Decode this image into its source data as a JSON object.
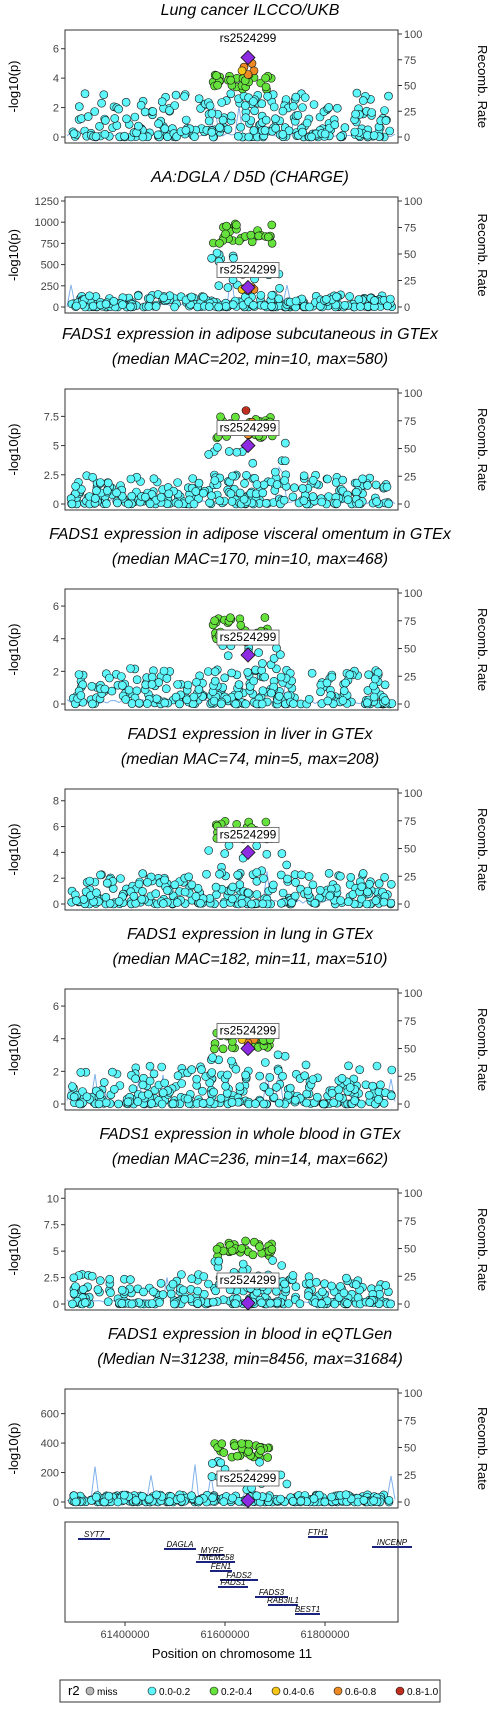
{
  "figure": {
    "lead_snp": "rs2524299",
    "y_label_left": "-log10(p)",
    "y_label_right": "Recomb. Rate",
    "x_label": "Position on chromosome 11",
    "x_ticks": [
      "61400000",
      "61600000",
      "61800000"
    ],
    "legend_title": "r2",
    "legend": [
      {
        "label": "miss",
        "color": "#b9b9b9"
      },
      {
        "label": "0.0-0.2",
        "color": "#5cf6fb"
      },
      {
        "label": "0.2-0.4",
        "color": "#66e23c"
      },
      {
        "label": "0.4-0.6",
        "color": "#f5c518"
      },
      {
        "label": "0.6-0.8",
        "color": "#ee8a23"
      },
      {
        "label": "0.8-1.0",
        "color": "#bf2f1f"
      }
    ],
    "lead_color": "#8c2be2",
    "recomb_color": "#4a90e2"
  },
  "chart_data": [
    {
      "type": "scatter",
      "title": [
        "Lung cancer ILCCO/UKB"
      ],
      "yticks": [
        0,
        2,
        4,
        6
      ],
      "ylim": [
        0,
        7
      ],
      "rticks": [
        0,
        25,
        50,
        75,
        100
      ],
      "peak": {
        "green": 4.3,
        "lead": 5.4,
        "orange": 5.0,
        "red": null
      },
      "background_max": 3
    },
    {
      "type": "scatter",
      "title": [
        "AA:DGLA / D5D (CHARGE)"
      ],
      "yticks": [
        0,
        250,
        500,
        750,
        1000,
        1250
      ],
      "ylim": [
        0,
        1250
      ],
      "rticks": [
        0,
        25,
        50,
        75,
        100
      ],
      "peak": {
        "green": 1000,
        "lead": 230,
        "orange": 230,
        "red": null
      },
      "background_max": 150
    },
    {
      "type": "scatter",
      "title": [
        "FADS1 expression in adipose subcutaneous in GTEx",
        "(median MAC=202, min=10, max=580)"
      ],
      "yticks": [
        0.0,
        2.5,
        5.0,
        7.5
      ],
      "ylim": [
        0,
        9.5
      ],
      "rticks": [
        0,
        25,
        50,
        75,
        100
      ],
      "peak": {
        "green": 7.5,
        "lead": 5.0,
        "orange": 7.0,
        "red": 8.0
      },
      "background_max": 2.5
    },
    {
      "type": "scatter",
      "title": [
        "FADS1 expression in adipose visceral omentum in GTEx",
        "(median MAC=170, min=10, max=468)"
      ],
      "yticks": [
        0,
        2,
        4,
        6
      ],
      "ylim": [
        0,
        6.8
      ],
      "rticks": [
        0,
        25,
        50,
        75,
        100
      ],
      "peak": {
        "green": 5.3,
        "lead": 3.0,
        "orange": null,
        "red": 3.8
      },
      "background_max": 2.2
    },
    {
      "type": "scatter",
      "title": [
        "FADS1 expression in liver in GTEx",
        "(median MAC=74, min=5, max=208)"
      ],
      "yticks": [
        0,
        2,
        4,
        6,
        8
      ],
      "ylim": [
        0,
        8.6
      ],
      "rticks": [
        0,
        25,
        50,
        75,
        100
      ],
      "peak": {
        "green": 6.5,
        "lead": 4.0,
        "orange": null,
        "red": null
      },
      "background_max": 2.4
    },
    {
      "type": "scatter",
      "title": [
        "FADS1 expression in lung in GTEx",
        "(median MAC=182, min=11, max=510)"
      ],
      "yticks": [
        0,
        2,
        4,
        6
      ],
      "ylim": [
        0,
        6.8
      ],
      "rticks": [
        0,
        25,
        50,
        75,
        100
      ],
      "peak": {
        "green": 4.5,
        "lead": 3.4,
        "orange": 4.4,
        "red": null
      },
      "background_max": 2.4
    },
    {
      "type": "scatter",
      "title": [
        "FADS1 expression in whole blood in GTEx",
        "(median MAC=236, min=14, max=662)"
      ],
      "yticks": [
        0.0,
        2.5,
        5.0,
        7.5,
        10.0
      ],
      "ylim": [
        0,
        10.5
      ],
      "rticks": [
        0,
        25,
        50,
        75,
        100
      ],
      "peak": {
        "green": 6.0,
        "lead": 0.1,
        "orange": null,
        "red": null
      },
      "background_max": 2.8
    },
    {
      "type": "scatter",
      "title": [
        "FADS1 expression in blood in eQTLGen",
        "(Median N=31238, min=8456, max=31684)"
      ],
      "yticks": [
        0,
        200,
        400,
        600
      ],
      "ylim": [
        0,
        740
      ],
      "rticks": [
        0,
        25,
        50,
        75,
        100
      ],
      "peak": {
        "green": 400,
        "lead": 10,
        "orange": null,
        "red": null
      },
      "background_max": 50
    }
  ],
  "genes": [
    "SYT7",
    "DAGLA",
    "MYRF",
    "TMEM258",
    "FEN1",
    "FADS2",
    "FADS1",
    "FADS3",
    "RAB3IL1",
    "BEST1",
    "FTH1",
    "INCENP"
  ]
}
